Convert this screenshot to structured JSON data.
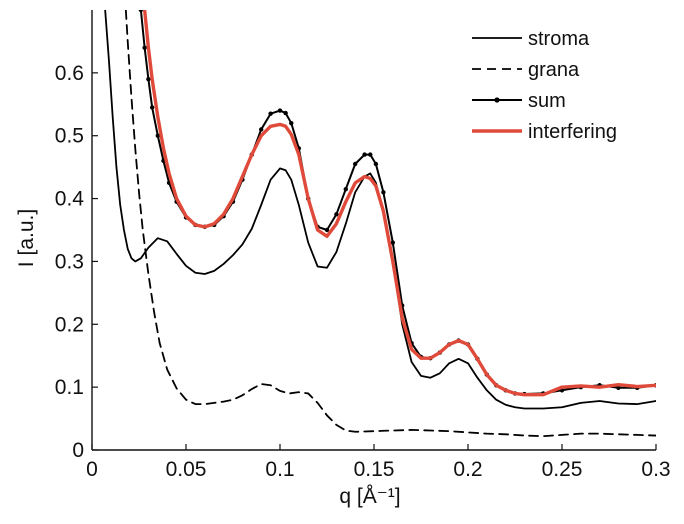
{
  "chart_data": {
    "type": "line",
    "title": "",
    "xlabel": "q [Å⁻¹]",
    "ylabel": "I [a.u.]",
    "xlim": [
      0,
      0.3
    ],
    "ylim": [
      0,
      0.7
    ],
    "xticks": [
      0,
      0.05,
      0.1,
      0.15,
      0.2,
      0.25,
      0.3
    ],
    "xtick_labels": [
      "0",
      "0.05",
      "0.1",
      "0.15",
      "0.2",
      "0.25",
      "0.3"
    ],
    "yticks": [
      0,
      0.1,
      0.2,
      0.3,
      0.4,
      0.5,
      0.6
    ],
    "ytick_labels": [
      "0",
      "0.1",
      "0.2",
      "0.3",
      "0.4",
      "0.5",
      "0.6"
    ],
    "grid": false,
    "legend_position": "top-right",
    "colors": {
      "stroma": "#000000",
      "grana": "#000000",
      "sum": "#000000",
      "interfering": "#e04a3a"
    },
    "series": [
      {
        "name": "stroma",
        "style": "solid",
        "x": [
          0.007,
          0.009,
          0.011,
          0.013,
          0.015,
          0.017,
          0.019,
          0.021,
          0.023,
          0.026,
          0.03,
          0.035,
          0.04,
          0.045,
          0.05,
          0.055,
          0.06,
          0.065,
          0.07,
          0.075,
          0.08,
          0.085,
          0.09,
          0.095,
          0.1,
          0.103,
          0.106,
          0.11,
          0.115,
          0.12,
          0.125,
          0.13,
          0.135,
          0.14,
          0.145,
          0.148,
          0.151,
          0.155,
          0.16,
          0.165,
          0.17,
          0.175,
          0.18,
          0.185,
          0.19,
          0.195,
          0.2,
          0.205,
          0.21,
          0.215,
          0.22,
          0.225,
          0.23,
          0.24,
          0.25,
          0.26,
          0.27,
          0.28,
          0.29,
          0.3
        ],
        "y": [
          0.7,
          0.62,
          0.53,
          0.45,
          0.39,
          0.35,
          0.32,
          0.305,
          0.3,
          0.305,
          0.322,
          0.337,
          0.332,
          0.312,
          0.293,
          0.282,
          0.28,
          0.285,
          0.296,
          0.31,
          0.327,
          0.352,
          0.39,
          0.43,
          0.448,
          0.445,
          0.43,
          0.39,
          0.33,
          0.292,
          0.29,
          0.315,
          0.36,
          0.41,
          0.435,
          0.44,
          0.425,
          0.38,
          0.3,
          0.2,
          0.14,
          0.118,
          0.115,
          0.122,
          0.138,
          0.145,
          0.138,
          0.115,
          0.095,
          0.08,
          0.072,
          0.068,
          0.066,
          0.066,
          0.068,
          0.075,
          0.078,
          0.074,
          0.073,
          0.078
        ]
      },
      {
        "name": "grana",
        "style": "dashed",
        "x": [
          0.018,
          0.019,
          0.021,
          0.023,
          0.025,
          0.027,
          0.03,
          0.033,
          0.036,
          0.04,
          0.045,
          0.05,
          0.055,
          0.06,
          0.065,
          0.07,
          0.075,
          0.08,
          0.085,
          0.09,
          0.095,
          0.1,
          0.105,
          0.11,
          0.115,
          0.12,
          0.125,
          0.13,
          0.135,
          0.14,
          0.15,
          0.16,
          0.17,
          0.18,
          0.19,
          0.2,
          0.21,
          0.22,
          0.23,
          0.24,
          0.25,
          0.26,
          0.27,
          0.28,
          0.29,
          0.3
        ],
        "y": [
          0.7,
          0.65,
          0.56,
          0.48,
          0.41,
          0.35,
          0.28,
          0.22,
          0.17,
          0.128,
          0.098,
          0.08,
          0.073,
          0.073,
          0.075,
          0.077,
          0.08,
          0.087,
          0.097,
          0.105,
          0.103,
          0.094,
          0.09,
          0.092,
          0.09,
          0.075,
          0.055,
          0.04,
          0.031,
          0.029,
          0.03,
          0.031,
          0.032,
          0.031,
          0.03,
          0.028,
          0.026,
          0.025,
          0.023,
          0.022,
          0.024,
          0.026,
          0.026,
          0.025,
          0.024,
          0.023
        ]
      },
      {
        "name": "sum",
        "style": "dotted-marker",
        "x": [
          0.026,
          0.028,
          0.03,
          0.032,
          0.035,
          0.038,
          0.041,
          0.045,
          0.05,
          0.055,
          0.06,
          0.065,
          0.07,
          0.075,
          0.08,
          0.085,
          0.09,
          0.095,
          0.1,
          0.103,
          0.106,
          0.11,
          0.115,
          0.12,
          0.125,
          0.13,
          0.135,
          0.14,
          0.145,
          0.148,
          0.151,
          0.155,
          0.16,
          0.165,
          0.17,
          0.175,
          0.18,
          0.185,
          0.19,
          0.195,
          0.2,
          0.205,
          0.21,
          0.215,
          0.22,
          0.225,
          0.23,
          0.24,
          0.25,
          0.26,
          0.27,
          0.28,
          0.29,
          0.3
        ],
        "y": [
          0.7,
          0.64,
          0.59,
          0.545,
          0.5,
          0.46,
          0.425,
          0.395,
          0.37,
          0.358,
          0.355,
          0.358,
          0.372,
          0.395,
          0.43,
          0.47,
          0.51,
          0.535,
          0.54,
          0.536,
          0.52,
          0.48,
          0.4,
          0.355,
          0.35,
          0.375,
          0.415,
          0.455,
          0.47,
          0.47,
          0.455,
          0.41,
          0.33,
          0.23,
          0.17,
          0.148,
          0.146,
          0.155,
          0.168,
          0.174,
          0.168,
          0.145,
          0.12,
          0.103,
          0.095,
          0.09,
          0.089,
          0.09,
          0.095,
          0.1,
          0.103,
          0.099,
          0.099,
          0.103
        ]
      },
      {
        "name": "interfering",
        "style": "solid-thick",
        "x": [
          0.028,
          0.03,
          0.032,
          0.035,
          0.038,
          0.041,
          0.045,
          0.05,
          0.055,
          0.06,
          0.065,
          0.07,
          0.075,
          0.08,
          0.085,
          0.09,
          0.095,
          0.1,
          0.103,
          0.106,
          0.11,
          0.115,
          0.12,
          0.125,
          0.13,
          0.135,
          0.14,
          0.145,
          0.148,
          0.151,
          0.155,
          0.16,
          0.165,
          0.17,
          0.175,
          0.18,
          0.185,
          0.19,
          0.195,
          0.2,
          0.205,
          0.21,
          0.215,
          0.22,
          0.225,
          0.23,
          0.24,
          0.25,
          0.26,
          0.27,
          0.28,
          0.29,
          0.3
        ],
        "y": [
          0.7,
          0.64,
          0.59,
          0.53,
          0.48,
          0.44,
          0.4,
          0.372,
          0.358,
          0.355,
          0.36,
          0.375,
          0.4,
          0.435,
          0.47,
          0.5,
          0.515,
          0.518,
          0.515,
          0.502,
          0.47,
          0.4,
          0.35,
          0.34,
          0.36,
          0.395,
          0.425,
          0.435,
          0.432,
          0.42,
          0.38,
          0.3,
          0.21,
          0.16,
          0.146,
          0.146,
          0.155,
          0.168,
          0.174,
          0.168,
          0.145,
          0.12,
          0.103,
          0.095,
          0.09,
          0.088,
          0.088,
          0.1,
          0.102,
          0.1,
          0.104,
          0.101,
          0.103
        ]
      }
    ]
  }
}
